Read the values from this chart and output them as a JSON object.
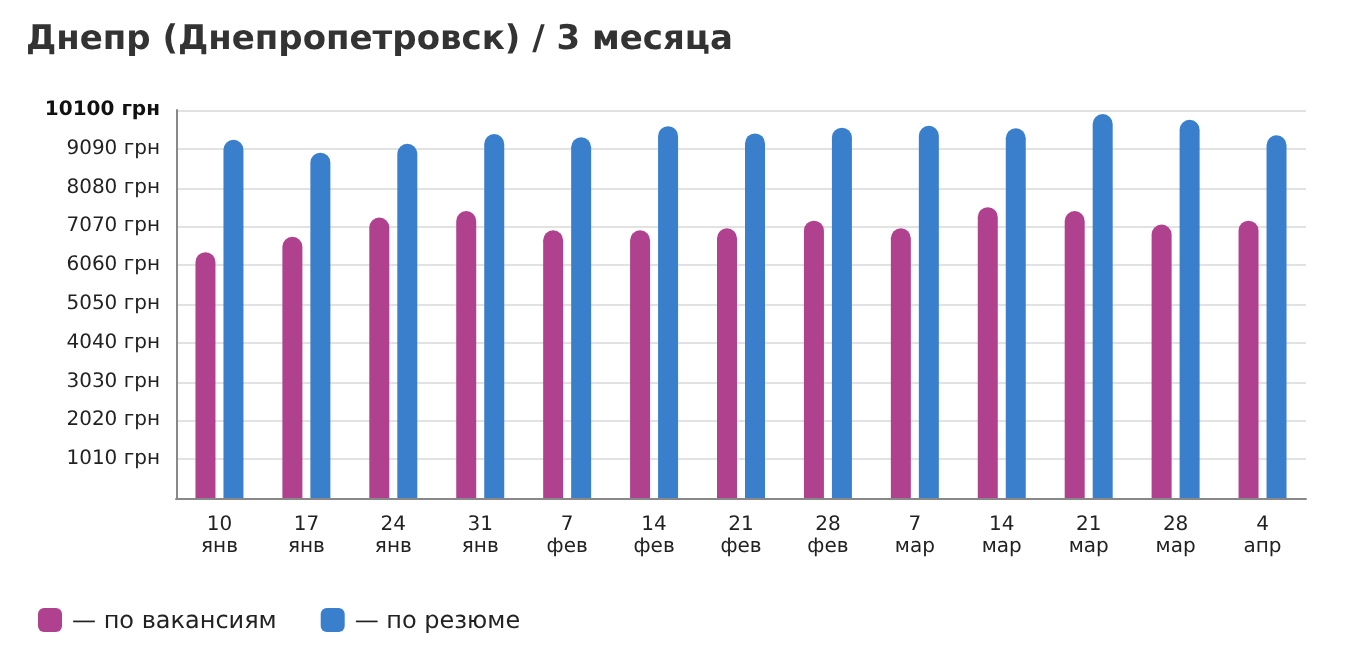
{
  "chart_data": {
    "type": "bar",
    "title": "Днепр (Днепропетровск) / 3 месяца",
    "categories": [
      "10\nянв",
      "17\nянв",
      "24\nянв",
      "31\nянв",
      "7\nфев",
      "14\nфев",
      "21\nфев",
      "28\nфев",
      "7\nмар",
      "14\nмар",
      "21\nмар",
      "28\nмар",
      "4\nапр"
    ],
    "series": [
      {
        "name": "— по вакансиям",
        "color": "#b0418f",
        "values": [
          6400,
          6800,
          7300,
          7470,
          6970,
          6970,
          7020,
          7220,
          7020,
          7570,
          7470,
          7120,
          7220
        ]
      },
      {
        "name": "— по резюме",
        "color": "#3a7fcc",
        "values": [
          9325,
          8990,
          9220,
          9475,
          9390,
          9680,
          9490,
          9640,
          9690,
          9625,
          9995,
          9845,
          9440
        ]
      }
    ],
    "ylim": [
      0,
      10100
    ],
    "yticks": [
      {
        "value": 1010,
        "label": "1010 грн"
      },
      {
        "value": 2020,
        "label": "2020 грн"
      },
      {
        "value": 3030,
        "label": "3030 грн"
      },
      {
        "value": 4040,
        "label": "4040 грн"
      },
      {
        "value": 5050,
        "label": "5050 грн"
      },
      {
        "value": 6060,
        "label": "6060 грн"
      },
      {
        "value": 7070,
        "label": "7070 грн"
      },
      {
        "value": 8080,
        "label": "8080 грн"
      },
      {
        "value": 9090,
        "label": "9090 грн"
      },
      {
        "value": 10100,
        "label": "10100 грн"
      }
    ],
    "grid": "y",
    "legend": "bottom left"
  }
}
